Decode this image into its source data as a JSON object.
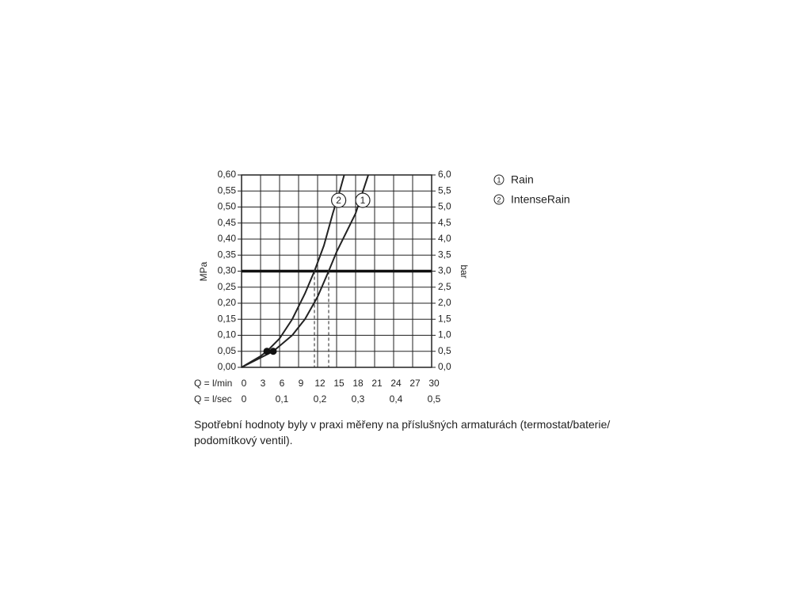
{
  "chart_data": {
    "type": "line",
    "y_label": "MPa",
    "y2_label": "bar",
    "x_label": "Q = l/min",
    "x2_label": "Q = l/sec",
    "xlim": [
      0,
      30
    ],
    "xticks": [
      0,
      3,
      6,
      9,
      12,
      15,
      18,
      21,
      24,
      27,
      30
    ],
    "x2lim": [
      0,
      0.5
    ],
    "x2ticks": [
      0,
      {
        "value": 0.1,
        "label": "0,1"
      },
      {
        "value": 0.2,
        "label": "0,2"
      },
      {
        "value": 0.3,
        "label": "0,3"
      },
      {
        "value": 0.4,
        "label": "0,4"
      },
      {
        "value": 0.5,
        "label": "0,5"
      }
    ],
    "ylim": [
      0,
      0.6
    ],
    "yticks": [
      {
        "value": 0,
        "label": "0,00"
      },
      {
        "value": 0.05,
        "label": "0,05"
      },
      {
        "value": 0.1,
        "label": "0,10"
      },
      {
        "value": 0.15,
        "label": "0,15"
      },
      {
        "value": 0.2,
        "label": "0,20"
      },
      {
        "value": 0.25,
        "label": "0,25"
      },
      {
        "value": 0.3,
        "label": "0,30"
      },
      {
        "value": 0.35,
        "label": "0,35"
      },
      {
        "value": 0.4,
        "label": "0,40"
      },
      {
        "value": 0.45,
        "label": "0,45"
      },
      {
        "value": 0.5,
        "label": "0,50"
      },
      {
        "value": 0.55,
        "label": "0,55"
      },
      {
        "value": 0.6,
        "label": "0,60"
      }
    ],
    "y2lim": [
      0,
      6
    ],
    "y2ticks": [
      {
        "value": 0,
        "label": "0,0"
      },
      {
        "value": 0.5,
        "label": "0,5"
      },
      {
        "value": 1,
        "label": "1,0"
      },
      {
        "value": 1.5,
        "label": "1,5"
      },
      {
        "value": 2,
        "label": "2,0"
      },
      {
        "value": 2.5,
        "label": "2,5"
      },
      {
        "value": 3,
        "label": "3,0"
      },
      {
        "value": 3.5,
        "label": "3,5"
      },
      {
        "value": 4,
        "label": "4,0"
      },
      {
        "value": 4.5,
        "label": "4,5"
      },
      {
        "value": 5,
        "label": "5,0"
      },
      {
        "value": 5.5,
        "label": "5,5"
      },
      {
        "value": 6,
        "label": "6,0"
      }
    ],
    "grid": true,
    "reference_y": 0.3,
    "reference_x": [
      11.5,
      13.75
    ],
    "markers": [
      {
        "x": 4,
        "y": 0.05
      },
      {
        "x": 5,
        "y": 0.05
      }
    ],
    "series": [
      {
        "name": "Rain",
        "label": "1",
        "color": "#222222",
        "x": [
          0,
          3,
          5,
          8,
          10,
          12,
          13.75,
          15,
          16.5,
          18,
          19,
          20
        ],
        "values": [
          0,
          0.03,
          0.05,
          0.1,
          0.15,
          0.22,
          0.3,
          0.36,
          0.42,
          0.48,
          0.54,
          0.6
        ]
      },
      {
        "name": "IntenseRain",
        "label": "2",
        "color": "#222222",
        "x": [
          0,
          3,
          4,
          6,
          8,
          10,
          11.5,
          13,
          14.4,
          15.5,
          16.2
        ],
        "values": [
          0,
          0.035,
          0.05,
          0.09,
          0.15,
          0.23,
          0.3,
          0.38,
          0.48,
          0.55,
          0.6
        ]
      }
    ],
    "caption": "Spotřební hodnoty byly v praxi měřeny na příslušných armaturách (termostat/baterie/ podomítkový ventil)."
  }
}
